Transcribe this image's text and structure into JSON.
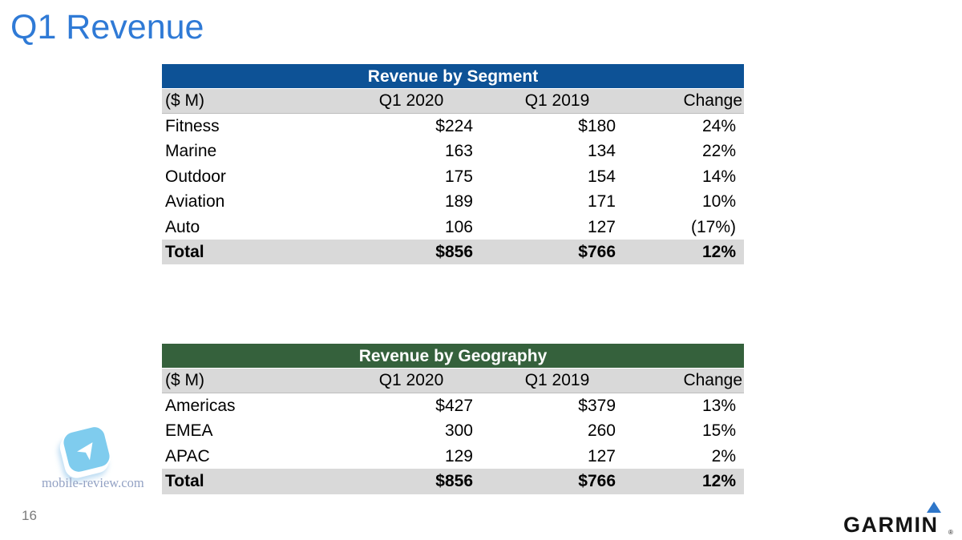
{
  "page": {
    "title": "Q1 Revenue",
    "page_number": "16"
  },
  "colors": {
    "title_blue": "#2f7ad6",
    "segment_header_bg": "#0d5296",
    "geography_header_bg": "#35613c",
    "band_gray": "#d9d9d9",
    "garmin_triangle_blue": "#2e76c9",
    "watermark_icon_blue": "#7fccee"
  },
  "tables": [
    {
      "name": "segment",
      "title": "Revenue by Segment",
      "header_bg": "#0d5296",
      "columns": [
        "($ M)",
        "Q1 2020",
        "Q1 2019",
        "Change"
      ],
      "rows": [
        {
          "label": "Fitness",
          "values": [
            "$224",
            "$180",
            "24%"
          ],
          "total": false
        },
        {
          "label": "Marine",
          "values": [
            "163",
            "134",
            "22%"
          ],
          "total": false
        },
        {
          "label": "Outdoor",
          "values": [
            "175",
            "154",
            "14%"
          ],
          "total": false
        },
        {
          "label": "Aviation",
          "values": [
            "189",
            "171",
            "10%"
          ],
          "total": false
        },
        {
          "label": "Auto",
          "values": [
            "106",
            "127",
            "(17%)"
          ],
          "total": false
        },
        {
          "label": "Total",
          "values": [
            "$856",
            "$766",
            "12%"
          ],
          "total": true
        }
      ]
    },
    {
      "name": "geography",
      "title": "Revenue by Geography",
      "header_bg": "#35613c",
      "columns": [
        "($ M)",
        "Q1 2020",
        "Q1 2019",
        "Change"
      ],
      "rows": [
        {
          "label": "Americas",
          "values": [
            "$427",
            "$379",
            "13%"
          ],
          "total": false
        },
        {
          "label": "EMEA",
          "values": [
            "300",
            "260",
            "15%"
          ],
          "total": false
        },
        {
          "label": "APAC",
          "values": [
            "129",
            "127",
            "2%"
          ],
          "total": false
        },
        {
          "label": "Total",
          "values": [
            "$856",
            "$766",
            "12%"
          ],
          "total": true
        }
      ]
    }
  ],
  "watermark": {
    "text": "mobile-review.com",
    "arrow_glyph": "➤"
  },
  "logo": {
    "text": "GARMIN",
    "registered_mark": "®"
  }
}
